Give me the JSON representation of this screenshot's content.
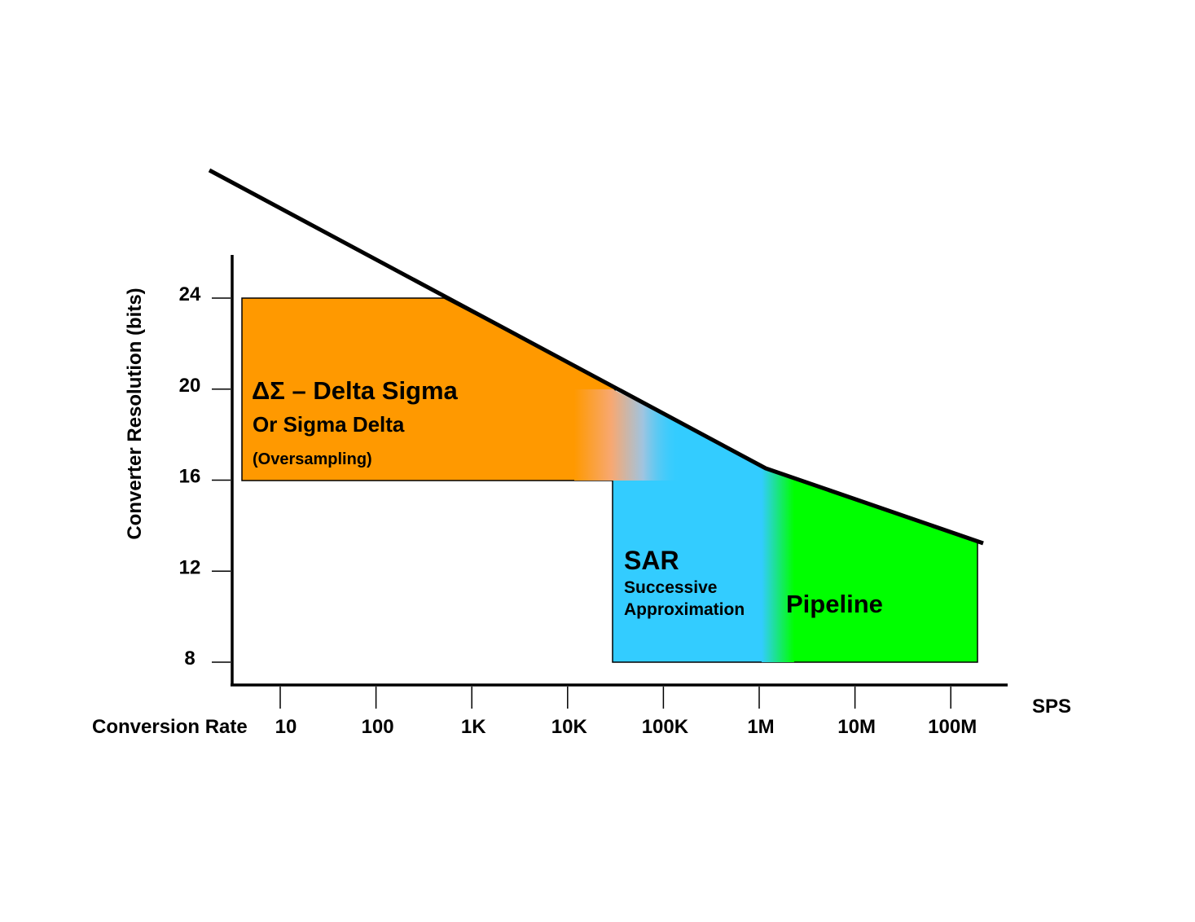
{
  "chart_data": {
    "type": "area",
    "xlabel": "Conversion Rate",
    "xunit": "SPS",
    "ylabel": "Converter Resolution (bits)",
    "x_scale": "log",
    "x_ticks": [
      "10",
      "100",
      "1K",
      "10K",
      "100K",
      "1M",
      "10M",
      "100M"
    ],
    "y_ticks": [
      24,
      20,
      16,
      12,
      8
    ],
    "grid": false,
    "colors": {
      "delta_sigma": "#ff9900",
      "sar": "#33ccff",
      "pipeline": "#00ff00",
      "limit_line": "#000000"
    },
    "limit_line": {
      "x": [
        1,
        1000000,
        300000000
      ],
      "y": [
        30.2,
        16.5,
        13.3
      ]
    },
    "regions": [
      {
        "id": "delta_sigma",
        "title": "ΔΣ – Delta Sigma",
        "subtitle": "Or Sigma Delta",
        "note": "(Oversampling)",
        "x_range": [
          5,
          60000
        ],
        "y_range": [
          16,
          24
        ]
      },
      {
        "id": "sar",
        "title": "SAR",
        "subtitle": "Successive",
        "note": "Approximation",
        "x_range": [
          30000,
          1500000
        ],
        "y_range": [
          8,
          18
        ]
      },
      {
        "id": "pipeline",
        "title": "Pipeline",
        "x_range": [
          1500000,
          200000000
        ],
        "y_range": [
          8,
          16.5
        ]
      }
    ]
  }
}
